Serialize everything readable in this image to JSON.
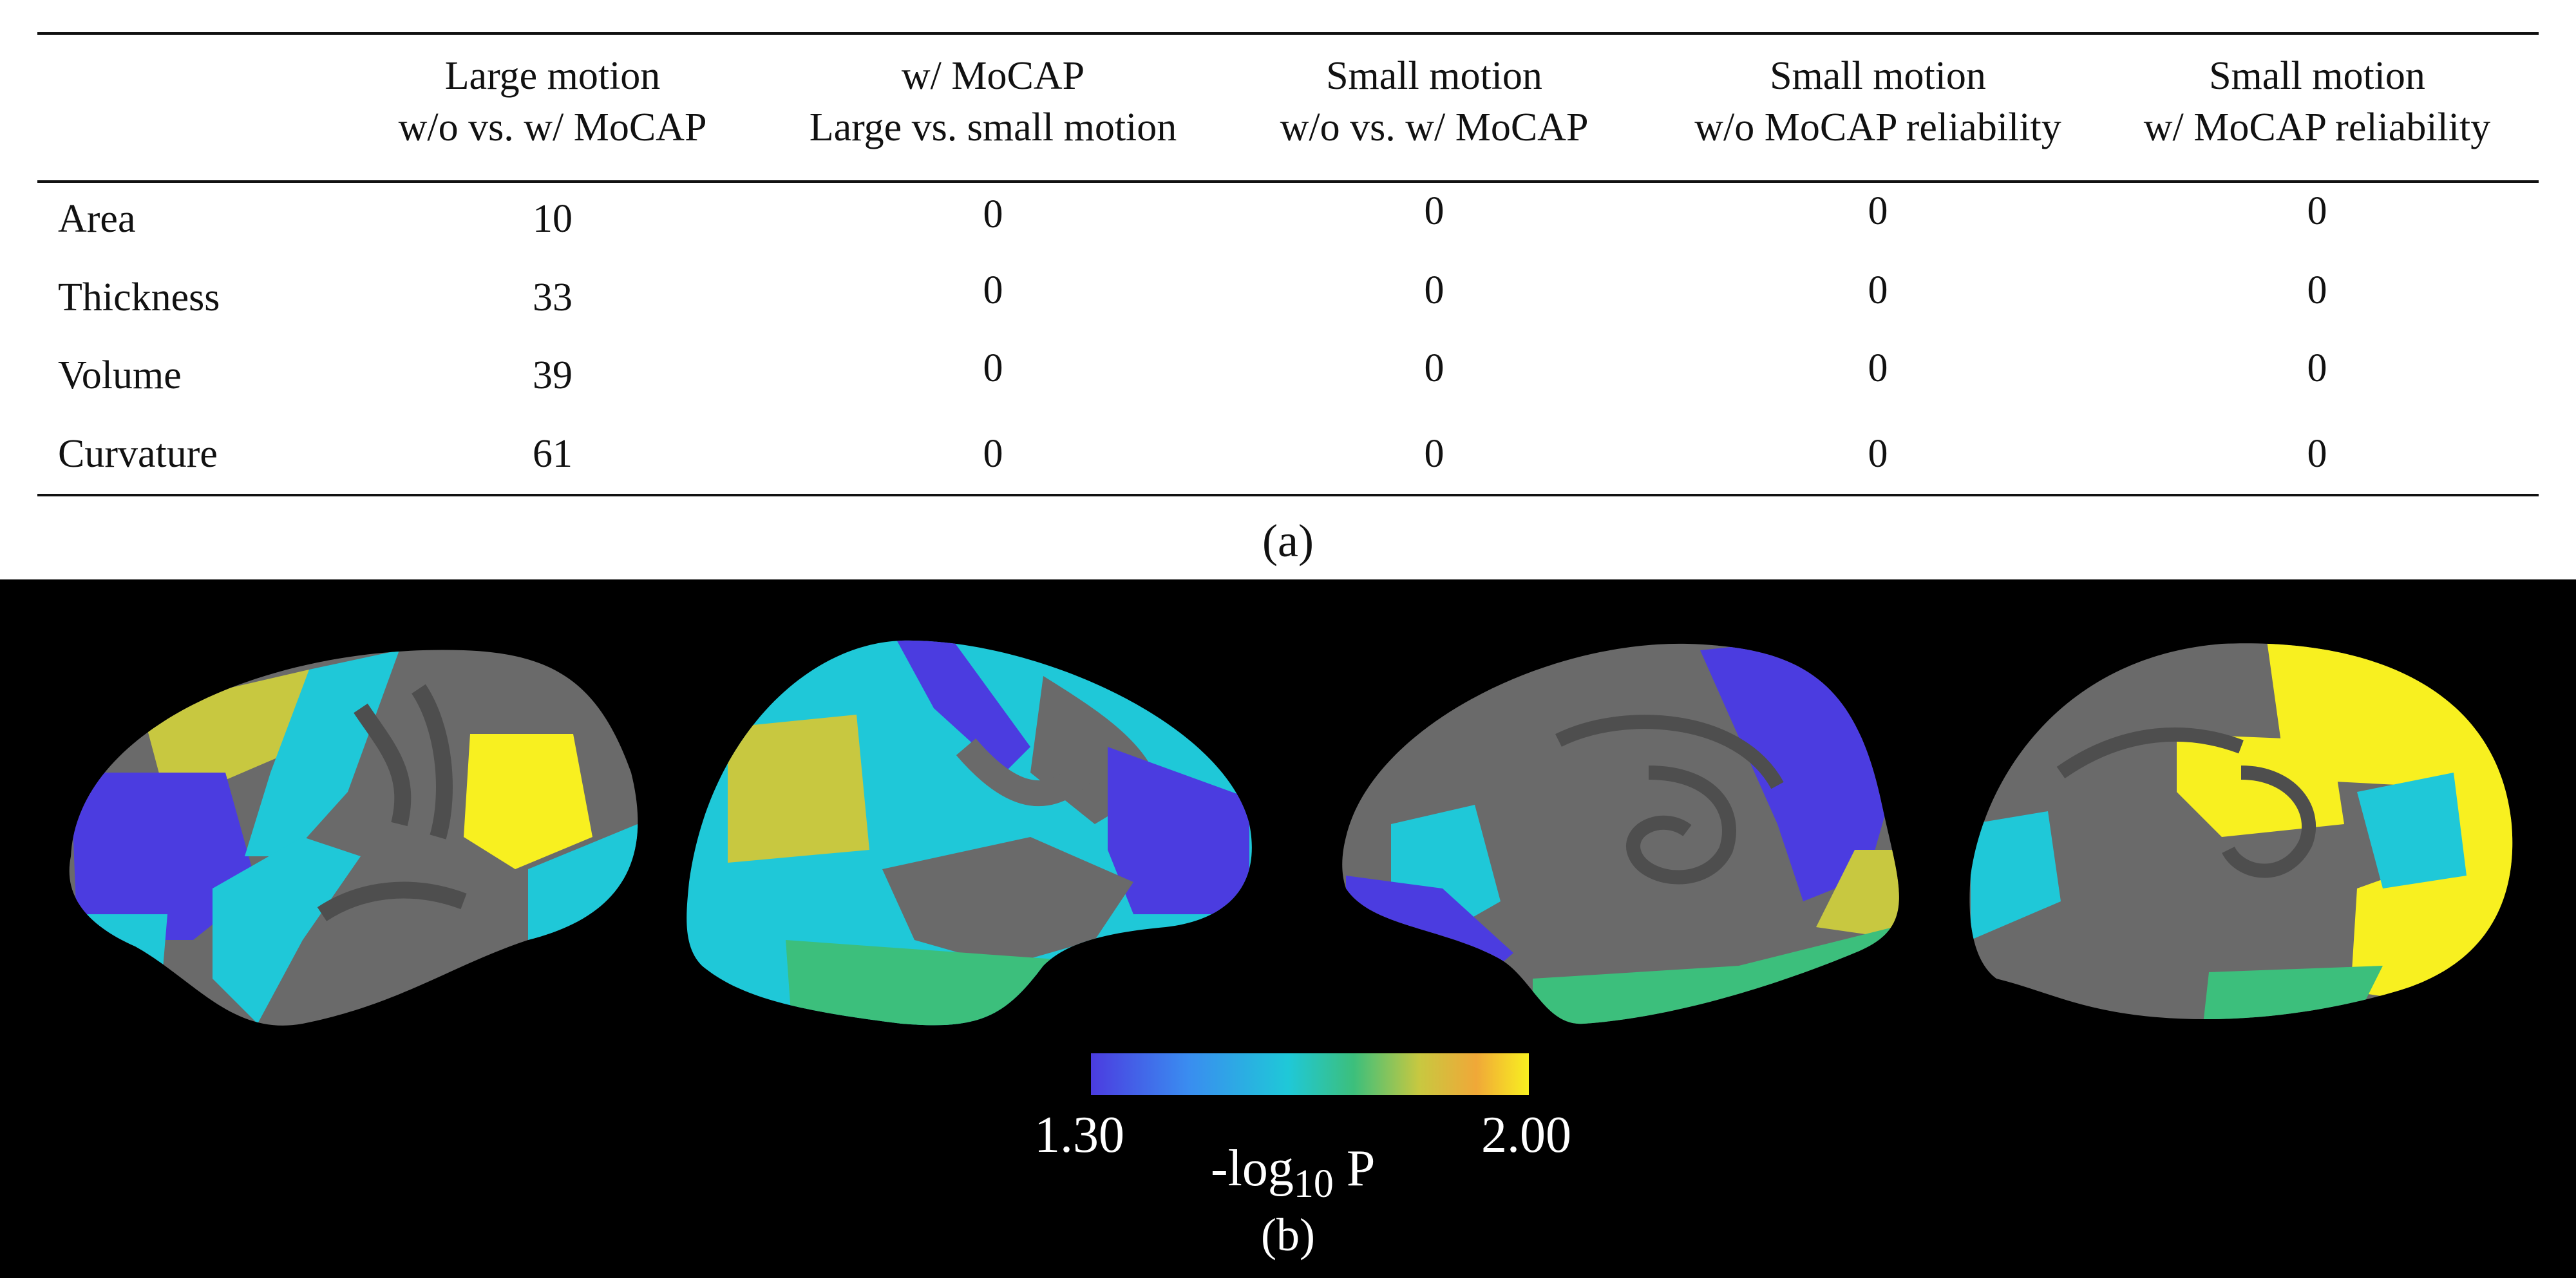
{
  "table": {
    "headers": [
      [
        "Large motion",
        "w/o vs. w/ MoCAP"
      ],
      [
        "w/ MoCAP",
        "Large vs. small motion"
      ],
      [
        "Small motion",
        "w/o vs. w/ MoCAP"
      ],
      [
        "Small motion",
        "w/o MoCAP reliability"
      ],
      [
        "Small motion",
        "w/ MoCAP reliability"
      ]
    ],
    "rows": [
      {
        "label": "Area",
        "values": [
          "10",
          "0",
          "0",
          "0",
          "0"
        ]
      },
      {
        "label": "Thickness",
        "values": [
          "33",
          "0",
          "0",
          "0",
          "0"
        ]
      },
      {
        "label": "Volume",
        "values": [
          "39",
          "0",
          "0",
          "0",
          "0"
        ]
      },
      {
        "label": "Curvature",
        "values": [
          "61",
          "0",
          "0",
          "0",
          "0"
        ]
      }
    ],
    "caption": "(a)"
  },
  "figure": {
    "colorbar": {
      "min_label": "1.30",
      "max_label": "2.00",
      "axis_prefix": "-log",
      "axis_sub": "10",
      "axis_suffix": " P",
      "colors": [
        "#4b3ce0",
        "#3a8cf0",
        "#1fc8d8",
        "#3cbf7c",
        "#c8c840",
        "#f0a838",
        "#f8f020"
      ]
    },
    "brain_views": [
      "lateral-left",
      "lateral-right",
      "medial-left",
      "medial-right"
    ],
    "caption": "(b)"
  }
}
